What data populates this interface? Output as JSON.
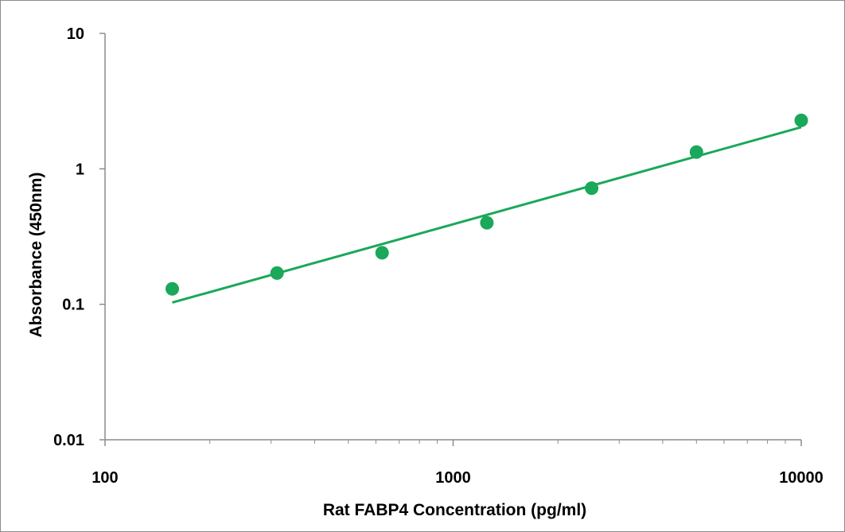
{
  "chart_data": {
    "type": "scatter",
    "xlabel": "Rat FABP4 Concentration (pg/ml)",
    "ylabel": "Absorbance (450nm)",
    "x_scale": "log",
    "y_scale": "log",
    "xlim": [
      100,
      10000
    ],
    "ylim": [
      0.01,
      10
    ],
    "x_ticks": [
      "100",
      "1000",
      "10000"
    ],
    "y_ticks": [
      "10",
      "1",
      "0.1",
      "0.01"
    ],
    "grid": false,
    "legend": "none",
    "colors": {
      "series": "#1aa85a",
      "axis": "#8c8c8c",
      "frame": "#8c8c8c"
    },
    "series": [
      {
        "x": [
          156,
          312,
          625,
          1250,
          2500,
          5000,
          10000
        ],
        "y": [
          0.13,
          0.17,
          0.24,
          0.4,
          0.72,
          1.33,
          2.28
        ]
      }
    ],
    "trendline": {
      "type": "power",
      "x": [
        156,
        10000
      ],
      "y": [
        0.103,
        2.03
      ]
    }
  }
}
